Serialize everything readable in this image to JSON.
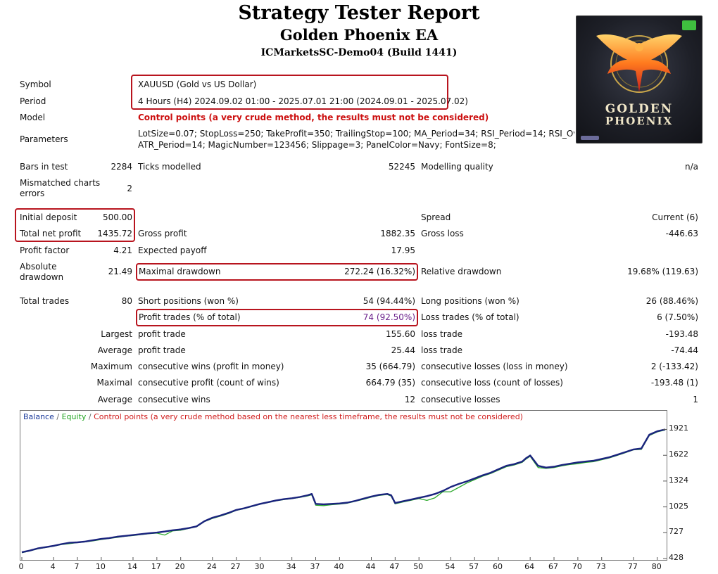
{
  "header": {
    "title": "Strategy Tester Report",
    "ea_name": "Golden Phoenix EA",
    "account": "ICMarketsSC-Demo04 (Build 1441)"
  },
  "logo": {
    "line1": "GOLDEN",
    "line2": "PHOENIX",
    "icon": "phoenix-emblem"
  },
  "info": {
    "symbol_label": "Symbol",
    "symbol_value": "XAUUSD (Gold vs US Dollar)",
    "period_label": "Period",
    "period_value": "4 Hours (H4) 2024.09.02 01:00 - 2025.07.01 21:00 (2024.09.01 - 2025.07.02)",
    "model_label": "Model",
    "model_value": "Control points (a very crude method, the results must not be considered)",
    "parameters_label": "Parameters",
    "parameters_line1": "LotSize=0.07; StopLoss=250; TakeProfit=350; TrailingStop=100; MA_Period=34; RSI_Period=14; RSI_Overbou",
    "parameters_line2": "ATR_Period=14; MagicNumber=123456; Slippage=3; PanelColor=Navy; FontSize=8;"
  },
  "stats": {
    "bars_label": "Bars in test",
    "bars_value": "2284",
    "ticks_label": "Ticks modelled",
    "ticks_value": "52245",
    "quality_label": "Modelling quality",
    "quality_value": "n/a",
    "mismatch_label_1": "Mismatched charts",
    "mismatch_label_2": "errors",
    "mismatch_value": "2",
    "deposit_label": "Initial deposit",
    "deposit_value": "500.00",
    "spread_label": "Spread",
    "spread_value": "Current (6)",
    "netprofit_label": "Total net profit",
    "netprofit_value": "1435.72",
    "grossprofit_label": "Gross profit",
    "grossprofit_value": "1882.35",
    "grossloss_label": "Gross loss",
    "grossloss_value": "-446.63",
    "pf_label": "Profit factor",
    "pf_value": "4.21",
    "expected_label": "Expected payoff",
    "expected_value": "17.95",
    "absdd_label_1": "Absolute",
    "absdd_label_2": "drawdown",
    "absdd_value": "21.49",
    "maxdd_label": "Maximal drawdown",
    "maxdd_value": "272.24 (16.32%)",
    "reldd_label": "Relative drawdown",
    "reldd_value": "19.68% (119.63)",
    "trades_label": "Total trades",
    "trades_value": "80",
    "short_label": "Short positions (won %)",
    "short_value": "54 (94.44%)",
    "long_label": "Long positions (won %)",
    "long_value": "26 (88.46%)",
    "profittrades_label": "Profit trades (% of total)",
    "profittrades_value": "74 (92.50%)",
    "losstrades_label": "Loss trades (% of total)",
    "losstrades_value": "6 (7.50%)",
    "largest_label": "Largest",
    "largest_pt_label": "profit trade",
    "largest_pt_value": "155.60",
    "largest_lt_label": "loss trade",
    "largest_lt_value": "-193.48",
    "average_label": "Average",
    "average_pt_label": "profit trade",
    "average_pt_value": "25.44",
    "average_lt_label": "loss trade",
    "average_lt_value": "-74.44",
    "maximum_label": "Maximum",
    "max_cw_label": "consecutive wins (profit in money)",
    "max_cw_value": "35 (664.79)",
    "max_cl_label": "consecutive losses (loss in money)",
    "max_cl_value": "2 (-133.42)",
    "maximal_label": "Maximal",
    "maxl_cp_label": "consecutive profit (count of wins)",
    "maxl_cp_value": "664.79 (35)",
    "maxl_cl_label": "consecutive loss (count of losses)",
    "maxl_cl_value": "-193.48 (1)",
    "average2_label": "Average",
    "avg_cw_label": "consecutive wins",
    "avg_cw_value": "12",
    "avg_cl_label": "consecutive losses",
    "avg_cl_value": "1"
  },
  "chart_data": {
    "type": "line",
    "legend": {
      "balance": "Balance",
      "equity": "Equity",
      "note": "Control points (a very crude method based on the nearest less timeframe, the results must not be considered)"
    },
    "colors": {
      "balance": "#1a237e",
      "equity": "#2eaa2e",
      "note": "#d01c1c"
    },
    "ylim": [
      428,
      1990
    ],
    "xlim": [
      0,
      81
    ],
    "y_ticks": [
      1921,
      1622,
      1324,
      1025,
      727,
      428
    ],
    "x_ticks": [
      0,
      4,
      7,
      10,
      14,
      17,
      20,
      24,
      27,
      30,
      34,
      37,
      40,
      44,
      47,
      50,
      54,
      57,
      60,
      64,
      67,
      70,
      73,
      77,
      80
    ],
    "series": [
      {
        "name": "Balance",
        "x": [
          0,
          1,
          2,
          3,
          4,
          5,
          6,
          7,
          8,
          9,
          10,
          11,
          12,
          13,
          14,
          15,
          16,
          17,
          18,
          19,
          20,
          21,
          22,
          23,
          24,
          25,
          26,
          27,
          28,
          29,
          30,
          31,
          32,
          33,
          34,
          35,
          36,
          36.5,
          37,
          38,
          39,
          40,
          41,
          42,
          43,
          44,
          45,
          46,
          46.5,
          47,
          48,
          49,
          50,
          51,
          52,
          53,
          54,
          55,
          56,
          57,
          58,
          59,
          60,
          61,
          62,
          63,
          63.5,
          64,
          65,
          66,
          67,
          68,
          69,
          70,
          71,
          72,
          73,
          74,
          75,
          76,
          77,
          78,
          79,
          80,
          81
        ],
        "values": [
          500,
          520,
          545,
          560,
          575,
          595,
          610,
          615,
          625,
          640,
          655,
          665,
          680,
          690,
          700,
          710,
          720,
          728,
          740,
          755,
          765,
          780,
          800,
          860,
          900,
          925,
          955,
          990,
          1010,
          1035,
          1060,
          1080,
          1100,
          1115,
          1125,
          1140,
          1160,
          1175,
          1060,
          1055,
          1060,
          1065,
          1075,
          1095,
          1120,
          1145,
          1165,
          1175,
          1160,
          1070,
          1090,
          1110,
          1130,
          1150,
          1175,
          1210,
          1255,
          1290,
          1320,
          1355,
          1390,
          1420,
          1460,
          1500,
          1520,
          1550,
          1590,
          1620,
          1500,
          1480,
          1490,
          1510,
          1525,
          1540,
          1550,
          1560,
          1580,
          1600,
          1630,
          1660,
          1690,
          1700,
          1860,
          1900,
          1921
        ]
      },
      {
        "name": "Equity",
        "x": [
          0,
          1,
          2,
          3,
          4,
          5,
          6,
          7,
          8,
          9,
          10,
          11,
          12,
          13,
          14,
          15,
          16,
          17,
          18,
          19,
          20,
          21,
          22,
          23,
          24,
          25,
          26,
          27,
          28,
          29,
          30,
          31,
          32,
          33,
          34,
          35,
          36,
          36.5,
          37,
          38,
          39,
          40,
          41,
          42,
          43,
          44,
          45,
          46,
          46.5,
          47,
          48,
          49,
          50,
          51,
          52,
          53,
          54,
          55,
          56,
          57,
          58,
          59,
          60,
          61,
          62,
          63,
          63.5,
          64,
          65,
          66,
          67,
          68,
          69,
          70,
          71,
          72,
          73,
          74,
          75,
          76,
          77,
          78,
          79,
          80,
          81
        ],
        "values": [
          495,
          515,
          540,
          555,
          570,
          590,
          600,
          612,
          620,
          632,
          648,
          660,
          672,
          685,
          694,
          705,
          715,
          722,
          700,
          748,
          755,
          775,
          795,
          855,
          892,
          918,
          948,
          985,
          1005,
          1030,
          1055,
          1075,
          1095,
          1110,
          1120,
          1135,
          1152,
          1165,
          1045,
          1040,
          1050,
          1058,
          1068,
          1090,
          1112,
          1138,
          1158,
          1168,
          1150,
          1060,
          1082,
          1102,
          1122,
          1100,
          1130,
          1200,
          1200,
          1250,
          1300,
          1340,
          1380,
          1410,
          1450,
          1490,
          1510,
          1540,
          1580,
          1610,
          1480,
          1470,
          1480,
          1500,
          1515,
          1525,
          1540,
          1548,
          1570,
          1592,
          1622,
          1652,
          1685,
          1690,
          1850,
          1892,
          1915
        ]
      }
    ]
  }
}
